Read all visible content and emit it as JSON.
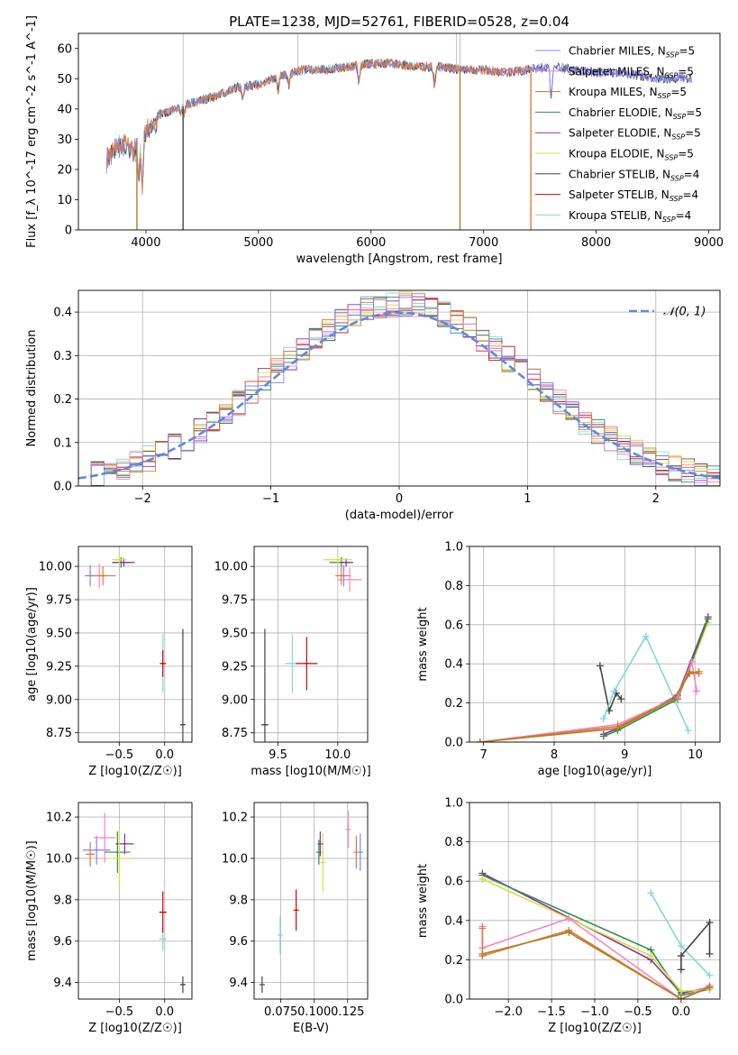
{
  "figure": {
    "title": "PLATE=1238, MJD=52761, FIBERID=0528, z=0.04"
  },
  "colors": {
    "Chabrier MILES": "#8080ff",
    "Salpeter MILES": "#ff80c0",
    "Kroupa MILES": "#b07d20",
    "Chabrier ELODIE": "#2f8f4f",
    "Salpeter ELODIE": "#8b2fa0",
    "Kroupa ELODIE": "#d4e040",
    "Chabrier STELIB": "#444444",
    "Salpeter STELIB": "#cc0000",
    "Kroupa STELIB": "#7fd6e0",
    "Mid Orange": "#e07b39",
    "Normal curve": "#5b8bd6"
  },
  "chart_data": [
    {
      "id": "spectrum",
      "type": "line",
      "title": "PLATE=1238, MJD=52761, FIBERID=0528, z=0.04",
      "xlabel": "wavelength [Angstrom, rest frame]",
      "ylabel": "Flux [f_λ 10^-17 erg cm^-2 s^-1 A^-1]",
      "xlim": [
        3400,
        9100
      ],
      "ylim": [
        0,
        65
      ],
      "xticks": [
        4000,
        5000,
        6000,
        7000,
        8000,
        9000
      ],
      "yticks": [
        0,
        10,
        20,
        30,
        40,
        50,
        60
      ],
      "grid": false,
      "legend_position": "upper-right",
      "legend": [
        {
          "label": "Chabrier MILES, N",
          "sub": "SSP",
          "suffix": "=5",
          "color_key": "Chabrier MILES"
        },
        {
          "label": "Salpeter MILES, N",
          "sub": "SSP",
          "suffix": "=5",
          "color_key": "Salpeter MILES"
        },
        {
          "label": "Kroupa MILES, N",
          "sub": "SSP",
          "suffix": "=5",
          "color_key": "Kroupa MILES"
        },
        {
          "label": "Chabrier ELODIE, N",
          "sub": "SSP",
          "suffix": "=5",
          "color_key": "Chabrier ELODIE"
        },
        {
          "label": "Salpeter ELODIE, N",
          "sub": "SSP",
          "suffix": "=5",
          "color_key": "Salpeter ELODIE"
        },
        {
          "label": "Kroupa ELODIE, N",
          "sub": "SSP",
          "suffix": "=5",
          "color_key": "Kroupa ELODIE"
        },
        {
          "label": "Chabrier STELIB, N",
          "sub": "SSP",
          "suffix": "=4",
          "color_key": "Chabrier STELIB"
        },
        {
          "label": "Salpeter STELIB, N",
          "sub": "SSP",
          "suffix": "=4",
          "color_key": "Salpeter STELIB"
        },
        {
          "label": "Kroupa STELIB, N",
          "sub": "SSP",
          "suffix": "=4",
          "color_key": "Kroupa STELIB"
        }
      ],
      "continuum": [
        [
          3650,
          26
        ],
        [
          3700,
          29
        ],
        [
          3800,
          31
        ],
        [
          3900,
          29
        ],
        [
          4000,
          36
        ],
        [
          4100,
          38
        ],
        [
          4200,
          39
        ],
        [
          4400,
          42
        ],
        [
          4600,
          44
        ],
        [
          4800,
          47
        ],
        [
          5000,
          48
        ],
        [
          5200,
          51
        ],
        [
          5400,
          53
        ],
        [
          5600,
          53
        ],
        [
          5800,
          54
        ],
        [
          6000,
          55
        ],
        [
          6200,
          55
        ],
        [
          6400,
          54
        ],
        [
          6600,
          54
        ],
        [
          6800,
          53
        ],
        [
          7000,
          53
        ],
        [
          7200,
          52
        ],
        [
          7400,
          53
        ],
        [
          7600,
          54
        ],
        [
          7800,
          53
        ],
        [
          8000,
          52
        ],
        [
          8200,
          52
        ],
        [
          8400,
          51
        ],
        [
          8600,
          50
        ],
        [
          8850,
          50
        ]
      ],
      "absorption_lines": [
        [
          3934,
          20
        ],
        [
          3968,
          18
        ],
        [
          4102,
          38
        ],
        [
          4305,
          39
        ],
        [
          4340,
          38
        ],
        [
          4861,
          43
        ],
        [
          5175,
          46
        ],
        [
          5270,
          48
        ],
        [
          5892,
          49
        ],
        [
          6563,
          48
        ],
        [
          7600,
          44
        ]
      ],
      "vertical_spikes": [
        [
          3920,
          "Kroupa MILES"
        ],
        [
          4330,
          "Chabrier STELIB"
        ],
        [
          6790,
          "Kroupa MILES"
        ],
        [
          7420,
          "Mid Orange"
        ]
      ],
      "model_series": [
        {
          "color_key": "Kroupa STELIB",
          "range": [
            3650,
            6850
          ]
        },
        {
          "color_key": "Chabrier STELIB",
          "range": [
            3650,
            8850
          ]
        },
        {
          "color_key": "Chabrier MILES",
          "range": [
            3650,
            8850
          ]
        },
        {
          "color_key": "Mid Orange",
          "range": [
            3650,
            7420
          ]
        }
      ]
    },
    {
      "id": "residuals",
      "type": "histogram",
      "xlabel": "(data-model)/error",
      "ylabel": "Normed distribution",
      "xlim": [
        -2.5,
        2.5
      ],
      "ylim": [
        0,
        0.45
      ],
      "xticks": [
        -2,
        -1,
        0,
        1,
        2
      ],
      "yticks": [
        0.0,
        0.1,
        0.2,
        0.3,
        0.4
      ],
      "grid": true,
      "legend_position": "upper-right",
      "legend": [
        {
          "label": "𝒩(0, 1)",
          "color_key": "Normal curve"
        }
      ],
      "normal": {
        "mu": 0,
        "sigma": 1
      },
      "bin_width": 0.1,
      "hist_series": [
        "Chabrier STELIB",
        "Salpeter STELIB",
        "Kroupa STELIB",
        "Chabrier ELODIE",
        "Salpeter ELODIE",
        "Kroupa ELODIE",
        "Salpeter MILES",
        "Mid Orange",
        "Chabrier MILES"
      ]
    },
    {
      "id": "age_vs_Z",
      "type": "errorbar",
      "xlabel": "Z [log10(Z/Z☉)]",
      "ylabel": "age [log10(age/yr)]",
      "xlim": [
        -0.95,
        0.3
      ],
      "ylim": [
        8.68,
        10.15
      ],
      "xticks": [
        -0.5,
        0.0
      ],
      "xticklabels": [
        "−0.5",
        "0.0"
      ],
      "yticks": [
        8.75,
        9.0,
        9.25,
        9.5,
        9.75,
        10.0
      ],
      "grid": true,
      "points": [
        {
          "x": -0.82,
          "y": 9.93,
          "xerr": 0.06,
          "yerr": 0.08,
          "color_key": "Chabrier MILES"
        },
        {
          "x": -0.72,
          "y": 9.93,
          "xerr": 0.1,
          "yerr": 0.09,
          "color_key": "Salpeter MILES"
        },
        {
          "x": -0.68,
          "y": 9.93,
          "xerr": 0.14,
          "yerr": 0.07,
          "color_key": "Mid Orange"
        },
        {
          "x": -0.48,
          "y": 10.03,
          "xerr": 0.1,
          "yerr": 0.04,
          "color_key": "Chabrier ELODIE"
        },
        {
          "x": -0.45,
          "y": 10.03,
          "xerr": 0.12,
          "yerr": 0.03,
          "color_key": "Salpeter ELODIE"
        },
        {
          "x": -0.5,
          "y": 10.05,
          "xerr": 0.08,
          "yerr": 0.03,
          "color_key": "Kroupa ELODIE"
        },
        {
          "x": -0.02,
          "y": 9.27,
          "xerr": 0.04,
          "yerr": 0.22,
          "color_key": "Kroupa STELIB"
        },
        {
          "x": -0.02,
          "y": 9.27,
          "xerr": 0.03,
          "yerr": 0.1,
          "color_key": "Salpeter STELIB"
        },
        {
          "x": 0.2,
          "y": 8.81,
          "xerr": 0.02,
          "yerr": 0.72,
          "color_key": "Chabrier STELIB"
        }
      ]
    },
    {
      "id": "age_vs_mass",
      "type": "errorbar",
      "xlabel": "mass [log10(M/M☉)]",
      "ylabel": "",
      "xlim": [
        9.3,
        10.25
      ],
      "ylim": [
        8.68,
        10.15
      ],
      "xticks": [
        9.5,
        10.0
      ],
      "yticks": [
        8.75,
        9.0,
        9.25,
        9.5,
        9.75,
        10.0
      ],
      "grid": true,
      "points": [
        {
          "x": 10.03,
          "y": 10.03,
          "xerr": 0.1,
          "yerr": 0.04,
          "color_key": "Chabrier ELODIE"
        },
        {
          "x": 10.07,
          "y": 10.03,
          "xerr": 0.05,
          "yerr": 0.03,
          "color_key": "Salpeter ELODIE"
        },
        {
          "x": 10.0,
          "y": 10.05,
          "xerr": 0.12,
          "yerr": 0.03,
          "color_key": "Kroupa ELODIE"
        },
        {
          "x": 10.05,
          "y": 9.93,
          "xerr": 0.06,
          "yerr": 0.08,
          "color_key": "Chabrier MILES"
        },
        {
          "x": 10.1,
          "y": 9.9,
          "xerr": 0.1,
          "yerr": 0.09,
          "color_key": "Salpeter MILES"
        },
        {
          "x": 10.03,
          "y": 9.93,
          "xerr": 0.05,
          "yerr": 0.07,
          "color_key": "Mid Orange"
        },
        {
          "x": 9.62,
          "y": 9.27,
          "xerr": 0.06,
          "yerr": 0.22,
          "color_key": "Kroupa STELIB"
        },
        {
          "x": 9.74,
          "y": 9.27,
          "xerr": 0.09,
          "yerr": 0.2,
          "color_key": "Salpeter STELIB"
        },
        {
          "x": 9.39,
          "y": 8.81,
          "xerr": 0.03,
          "yerr": 0.72,
          "color_key": "Chabrier STELIB"
        }
      ]
    },
    {
      "id": "weight_vs_age",
      "type": "line",
      "xlabel": "age [log10(age/yr)]",
      "ylabel": "mass weight",
      "xlim": [
        6.8,
        10.35
      ],
      "ylim": [
        0,
        1.0
      ],
      "xticks": [
        7,
        8,
        9,
        10
      ],
      "yticks": [
        0.0,
        0.2,
        0.4,
        0.6,
        0.8,
        1.0
      ],
      "grid": true,
      "series": [
        {
          "color_key": "Chabrier STELIB",
          "x": [
            8.65,
            8.78,
            8.88,
            8.95
          ],
          "y": [
            0.39,
            0.16,
            0.25,
            0.22
          ]
        },
        {
          "color_key": "Kroupa STELIB",
          "x": [
            8.7,
            8.85,
            9.3,
            9.9
          ],
          "y": [
            0.12,
            0.26,
            0.54,
            0.06
          ]
        },
        {
          "color_key": "Salpeter ELODIE",
          "x": [
            8.7,
            8.9,
            9.75,
            10.18
          ],
          "y": [
            0.04,
            0.07,
            0.24,
            0.64
          ]
        },
        {
          "color_key": "Kroupa ELODIE",
          "x": [
            8.7,
            8.9,
            9.75,
            10.18
          ],
          "y": [
            0.03,
            0.06,
            0.22,
            0.61
          ]
        },
        {
          "color_key": "Chabrier ELODIE",
          "x": [
            8.7,
            8.9,
            9.75,
            10.18
          ],
          "y": [
            0.03,
            0.06,
            0.22,
            0.63
          ]
        },
        {
          "color_key": "Salpeter MILES",
          "x": [
            6.95,
            8.9,
            9.75,
            9.95,
            10.02
          ],
          "y": [
            0.0,
            0.09,
            0.23,
            0.41,
            0.26
          ]
        },
        {
          "color_key": "Mid Orange",
          "x": [
            6.95,
            8.9,
            9.7,
            9.92,
            10.05
          ],
          "y": [
            0.0,
            0.08,
            0.22,
            0.36,
            0.35
          ]
        },
        {
          "color_key": "Kroupa MILES",
          "x": [
            6.95,
            8.9,
            9.7,
            9.92,
            10.05
          ],
          "y": [
            0.0,
            0.07,
            0.22,
            0.35,
            0.36
          ]
        }
      ]
    },
    {
      "id": "mass_vs_Z",
      "type": "errorbar",
      "xlabel": "Z [log10(Z/Z☉)]",
      "ylabel": "mass [log10(M/M☉)]",
      "xlim": [
        -0.95,
        0.3
      ],
      "ylim": [
        9.32,
        10.27
      ],
      "xticks": [
        -0.5,
        0.0
      ],
      "xticklabels": [
        "−0.5",
        "0.0"
      ],
      "yticks": [
        9.4,
        9.6,
        9.8,
        10.0,
        10.2
      ],
      "grid": true,
      "points": [
        {
          "x": -0.75,
          "y": 10.04,
          "xerr": 0.15,
          "yerr": 0.07,
          "color_key": "Chabrier MILES"
        },
        {
          "x": -0.66,
          "y": 10.1,
          "xerr": 0.12,
          "yerr": 0.12,
          "color_key": "Salpeter MILES"
        },
        {
          "x": -0.82,
          "y": 10.02,
          "xerr": 0.05,
          "yerr": 0.06,
          "color_key": "Mid Orange"
        },
        {
          "x": -0.52,
          "y": 10.03,
          "xerr": 0.14,
          "yerr": 0.1,
          "color_key": "Chabrier ELODIE"
        },
        {
          "x": -0.44,
          "y": 10.07,
          "xerr": 0.1,
          "yerr": 0.05,
          "color_key": "Salpeter ELODIE"
        },
        {
          "x": -0.5,
          "y": 10.0,
          "xerr": 0.14,
          "yerr": 0.14,
          "color_key": "Kroupa ELODIE"
        },
        {
          "x": -0.02,
          "y": 9.61,
          "xerr": 0.04,
          "yerr": 0.06,
          "color_key": "Kroupa STELIB"
        },
        {
          "x": -0.02,
          "y": 9.74,
          "xerr": 0.04,
          "yerr": 0.1,
          "color_key": "Salpeter STELIB"
        },
        {
          "x": 0.2,
          "y": 9.39,
          "xerr": 0.03,
          "yerr": 0.04,
          "color_key": "Chabrier STELIB"
        }
      ]
    },
    {
      "id": "mass_vs_ebv",
      "type": "errorbar",
      "xlabel": "E(B-V)",
      "ylabel": "",
      "xlim": [
        0.055,
        0.14
      ],
      "ylim": [
        9.32,
        10.27
      ],
      "xticks": [
        0.075,
        0.1,
        0.125
      ],
      "xticklabels": [
        "0.075",
        "0.100",
        "0.125"
      ],
      "yticks": [
        9.4,
        9.6,
        9.8,
        10.0,
        10.2
      ],
      "grid": true,
      "points": [
        {
          "x": 0.061,
          "y": 9.39,
          "yerr": 0.04,
          "color_key": "Chabrier STELIB"
        },
        {
          "x": 0.0745,
          "y": 9.63,
          "yerr": 0.09,
          "color_key": "Kroupa STELIB"
        },
        {
          "x": 0.0865,
          "y": 9.75,
          "yerr": 0.1,
          "color_key": "Salpeter STELIB"
        },
        {
          "x": 0.1035,
          "y": 10.03,
          "yerr": 0.06,
          "color_key": "Chabrier ELODIE"
        },
        {
          "x": 0.1065,
          "y": 9.98,
          "yerr": 0.14,
          "color_key": "Kroupa ELODIE"
        },
        {
          "x": 0.1045,
          "y": 10.07,
          "yerr": 0.06,
          "color_key": "Salpeter ELODIE"
        },
        {
          "x": 0.1255,
          "y": 10.14,
          "yerr": 0.09,
          "color_key": "Salpeter MILES"
        },
        {
          "x": 0.1315,
          "y": 10.03,
          "yerr": 0.08,
          "color_key": "Mid Orange"
        },
        {
          "x": 0.1345,
          "y": 10.03,
          "yerr": 0.09,
          "color_key": "Chabrier MILES"
        }
      ]
    },
    {
      "id": "weight_vs_Z",
      "type": "line",
      "xlabel": "Z [log10(Z/Z☉)]",
      "ylabel": "mass weight",
      "xlim": [
        -2.45,
        0.45
      ],
      "ylim": [
        0,
        1.0
      ],
      "xticks": [
        -2.0,
        -1.5,
        -1.0,
        -0.5,
        0.0
      ],
      "xticklabels": [
        "−2.0",
        "−1.5",
        "−1.0",
        "−0.5",
        "0.0"
      ],
      "yticks": [
        0.0,
        0.2,
        0.4,
        0.6,
        0.8,
        1.0
      ],
      "grid": true,
      "series": [
        {
          "color_key": "Salpeter ELODIE",
          "x": [
            -2.3,
            -0.35,
            0.0,
            0.33
          ],
          "y": [
            0.64,
            0.2,
            0.03,
            0.06
          ]
        },
        {
          "color_key": "Chabrier ELODIE",
          "x": [
            -2.3,
            -0.35,
            0.0,
            0.33
          ],
          "y": [
            0.63,
            0.25,
            0.02,
            0.05
          ]
        },
        {
          "color_key": "Kroupa ELODIE",
          "x": [
            -2.3,
            -0.35,
            0.0,
            0.33
          ],
          "y": [
            0.61,
            0.22,
            0.04,
            0.05
          ]
        },
        {
          "color_key": "Kroupa STELIB",
          "x": [
            -0.35,
            0.0,
            0.33
          ],
          "y": [
            0.54,
            0.27,
            0.12
          ]
        },
        {
          "color_key": "Chabrier STELIB",
          "x": [
            0.0,
            0.0,
            0.33,
            0.33
          ],
          "y": [
            0.15,
            0.22,
            0.39,
            0.23
          ]
        },
        {
          "color_key": "Salpeter MILES",
          "x": [
            -2.3,
            -2.3,
            -1.3,
            0.0,
            0.33
          ],
          "y": [
            0.37,
            0.26,
            0.41,
            0.0,
            0.07
          ]
        },
        {
          "color_key": "Mid Orange",
          "x": [
            -2.3,
            -2.3,
            -1.3,
            0.0,
            0.33
          ],
          "y": [
            0.36,
            0.22,
            0.35,
            0.0,
            0.06
          ]
        },
        {
          "color_key": "Kroupa MILES",
          "x": [
            -2.3,
            -1.3,
            0.0,
            0.33
          ],
          "y": [
            0.23,
            0.34,
            0.0,
            0.06
          ]
        }
      ]
    }
  ]
}
